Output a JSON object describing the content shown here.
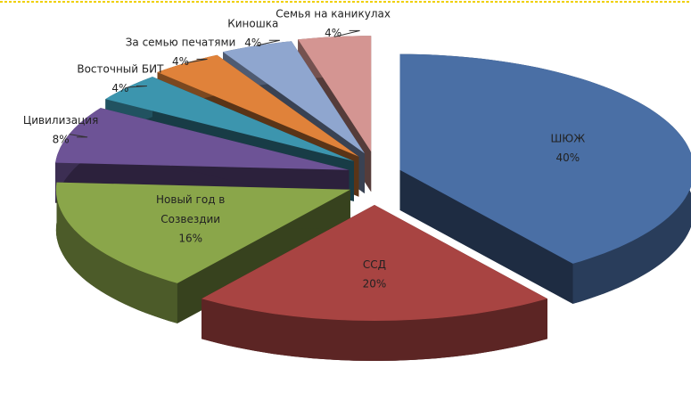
{
  "chart_data": {
    "type": "pie",
    "categories": [
      "ШЮЖ",
      "ССД",
      "Новый год в Созвездии",
      "Цивилизация",
      "Восточный БИТ",
      "За семью печатями",
      "Киношка",
      "Семья на каникулах"
    ],
    "values": [
      40,
      20,
      16,
      8,
      4,
      4,
      4,
      4
    ],
    "value_labels": [
      "40%",
      "20%",
      "16%",
      "8%",
      "4%",
      "4%",
      "4%",
      "4%"
    ],
    "colors": [
      "#4a6fa5",
      "#a84442",
      "#8aa64a",
      "#6d5396",
      "#3c95ae",
      "#e0823a",
      "#8fa6cf",
      "#d49592"
    ]
  }
}
